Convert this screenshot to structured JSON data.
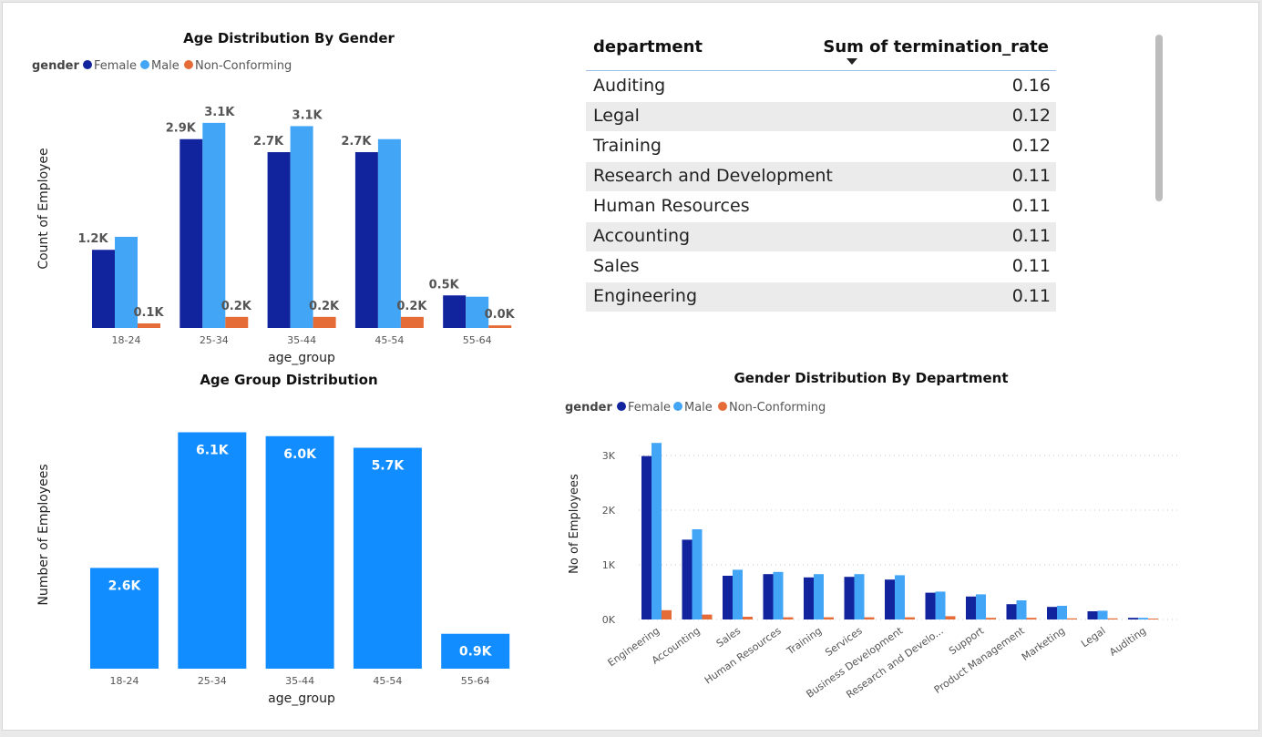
{
  "colors": {
    "female": "#12239e",
    "male": "#42a5f5",
    "non_conforming": "#e66c37",
    "single_bar": "#118dff"
  },
  "legend": {
    "title": "gender",
    "items": [
      "Female",
      "Male",
      "Non-Conforming"
    ]
  },
  "chart_data": [
    {
      "type": "bar",
      "title": "Age Distribution By Gender",
      "xlabel": "age_group",
      "ylabel": "Count of Employee",
      "categories": [
        "18-24",
        "25-34",
        "35-44",
        "45-54",
        "55-64"
      ],
      "series": [
        {
          "name": "Female",
          "values": [
            1200,
            2900,
            2700,
            2700,
            500
          ],
          "labels": [
            "1.2K",
            "2.9K",
            "2.7K",
            "2.7K",
            "0.5K"
          ]
        },
        {
          "name": "Male",
          "values": [
            1400,
            3150,
            3100,
            2900,
            480
          ],
          "labels": [
            "",
            "3.1K",
            "3.1K",
            "",
            ""
          ]
        },
        {
          "name": "Non-Conforming",
          "values": [
            70,
            170,
            170,
            170,
            40
          ],
          "labels": [
            "0.1K",
            "0.2K",
            "0.2K",
            "0.2K",
            "0.0K"
          ]
        }
      ],
      "ylim": [
        0,
        3400
      ],
      "legend_position": "top-left"
    },
    {
      "type": "bar",
      "title": "Age Group Distribution",
      "xlabel": "age_group",
      "ylabel": "Number of Employees",
      "categories": [
        "18-24",
        "25-34",
        "35-44",
        "45-54",
        "55-64"
      ],
      "values": [
        2600,
        6100,
        6000,
        5700,
        900
      ],
      "labels": [
        "2.6K",
        "6.1K",
        "6.0K",
        "5.7K",
        "0.9K"
      ],
      "ylim": [
        0,
        6300
      ]
    },
    {
      "type": "bar",
      "title": "Gender Distribution By Department",
      "xlabel": "",
      "ylabel": "No of Employees",
      "categories": [
        "Engineering",
        "Accounting",
        "Sales",
        "Human Resources",
        "Training",
        "Services",
        "Business Development",
        "Research and Develo...",
        "Support",
        "Product Management",
        "Marketing",
        "Legal",
        "Auditing"
      ],
      "series": [
        {
          "name": "Female",
          "values": [
            2990,
            1460,
            800,
            830,
            770,
            780,
            730,
            490,
            420,
            280,
            230,
            150,
            30
          ]
        },
        {
          "name": "Male",
          "values": [
            3230,
            1650,
            910,
            870,
            830,
            830,
            810,
            510,
            460,
            350,
            250,
            160,
            30
          ]
        },
        {
          "name": "Non-Conforming",
          "values": [
            170,
            90,
            50,
            40,
            40,
            40,
            40,
            60,
            30,
            30,
            20,
            20,
            5
          ]
        }
      ],
      "yticks": [
        "0K",
        "1K",
        "2K",
        "3K"
      ],
      "ylim": [
        0,
        3300
      ],
      "grid": true,
      "legend_position": "top-left"
    }
  ],
  "table": {
    "headers": {
      "department": "department",
      "value": "Sum of termination_rate"
    },
    "rows": [
      {
        "department": "Auditing",
        "value": "0.16"
      },
      {
        "department": "Legal",
        "value": "0.12"
      },
      {
        "department": "Training",
        "value": "0.12"
      },
      {
        "department": "Research and Development",
        "value": "0.11"
      },
      {
        "department": "Human Resources",
        "value": "0.11"
      },
      {
        "department": "Accounting",
        "value": "0.11"
      },
      {
        "department": "Sales",
        "value": "0.11"
      },
      {
        "department": "Engineering",
        "value": "0.11"
      }
    ]
  }
}
